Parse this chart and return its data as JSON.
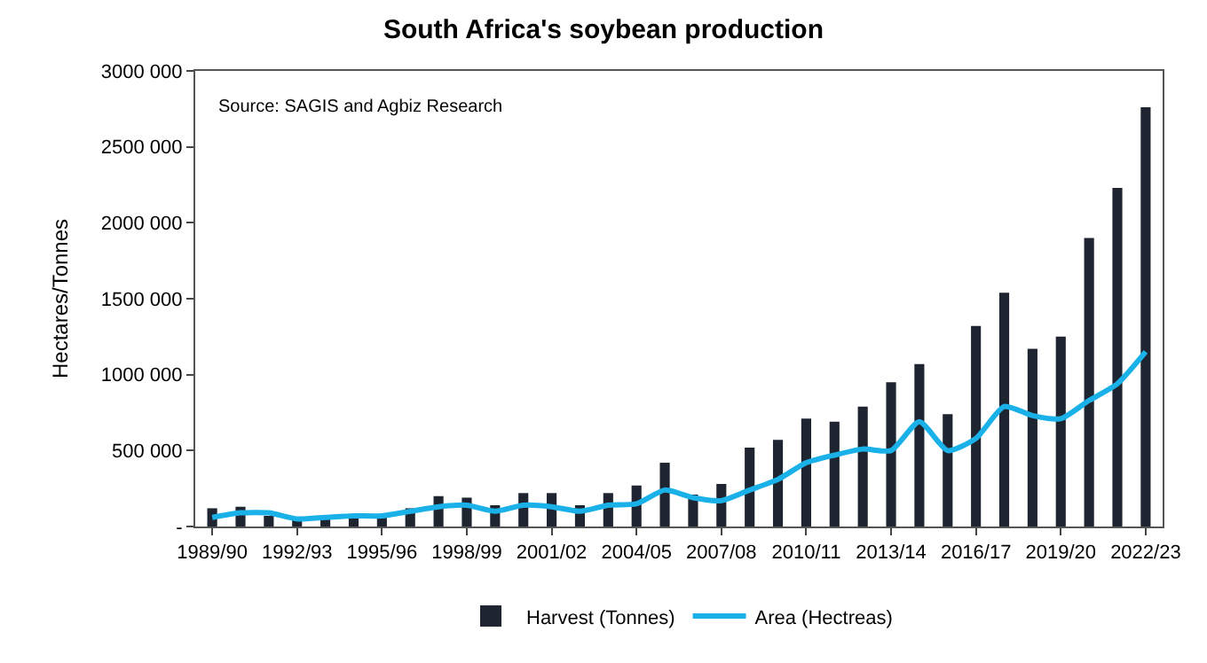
{
  "chart_data": {
    "type": "bar",
    "title": "South Africa's soybean production",
    "ylabel": "Hectares/Tonnes",
    "annotations": [
      "Source: SAGIS and Agbiz Research"
    ],
    "categories": [
      "1989/90",
      null,
      null,
      "1992/93",
      null,
      null,
      "1995/96",
      null,
      null,
      "1998/99",
      null,
      null,
      "2001/02",
      null,
      null,
      "2004/05",
      null,
      null,
      "2007/08",
      null,
      null,
      "2010/11",
      null,
      null,
      "2013/14",
      null,
      null,
      "2016/17",
      null,
      null,
      "2019/20",
      null,
      null,
      "2022/23"
    ],
    "series": [
      {
        "name": "Harvest (Tonnes)",
        "color": "#1e2530",
        "values": [
          120000,
          130000,
          70000,
          60000,
          60000,
          60000,
          70000,
          120000,
          200000,
          190000,
          140000,
          220000,
          220000,
          140000,
          220000,
          270000,
          420000,
          210000,
          280000,
          520000,
          570000,
          710000,
          690000,
          790000,
          950000,
          1070000,
          740000,
          1320000,
          1540000,
          1170000,
          1250000,
          1900000,
          2230000,
          2760000
        ]
      },
      {
        "name": "Area (Hectreas)",
        "type": "line",
        "color": "#1ab0e8",
        "values": [
          60000,
          90000,
          90000,
          50000,
          60000,
          70000,
          70000,
          100000,
          130000,
          140000,
          100000,
          140000,
          130000,
          100000,
          140000,
          150000,
          240000,
          190000,
          170000,
          240000,
          310000,
          420000,
          470000,
          510000,
          500000,
          690000,
          500000,
          580000,
          790000,
          730000,
          710000,
          830000,
          940000,
          1150000
        ]
      }
    ],
    "ylim": [
      0,
      3000000
    ],
    "yticks": [
      {
        "value": 0,
        "label": "-"
      },
      {
        "value": 500000,
        "label": "500 000"
      },
      {
        "value": 1000000,
        "label": "1000 000"
      },
      {
        "value": 1500000,
        "label": "1500 000"
      },
      {
        "value": 2000000,
        "label": "2000 000"
      },
      {
        "value": 2500000,
        "label": "2500 000"
      },
      {
        "value": 3000000,
        "label": "3000 000"
      }
    ],
    "grid": false,
    "legend": "bottom",
    "marker": "none",
    "line_style": "solid"
  }
}
